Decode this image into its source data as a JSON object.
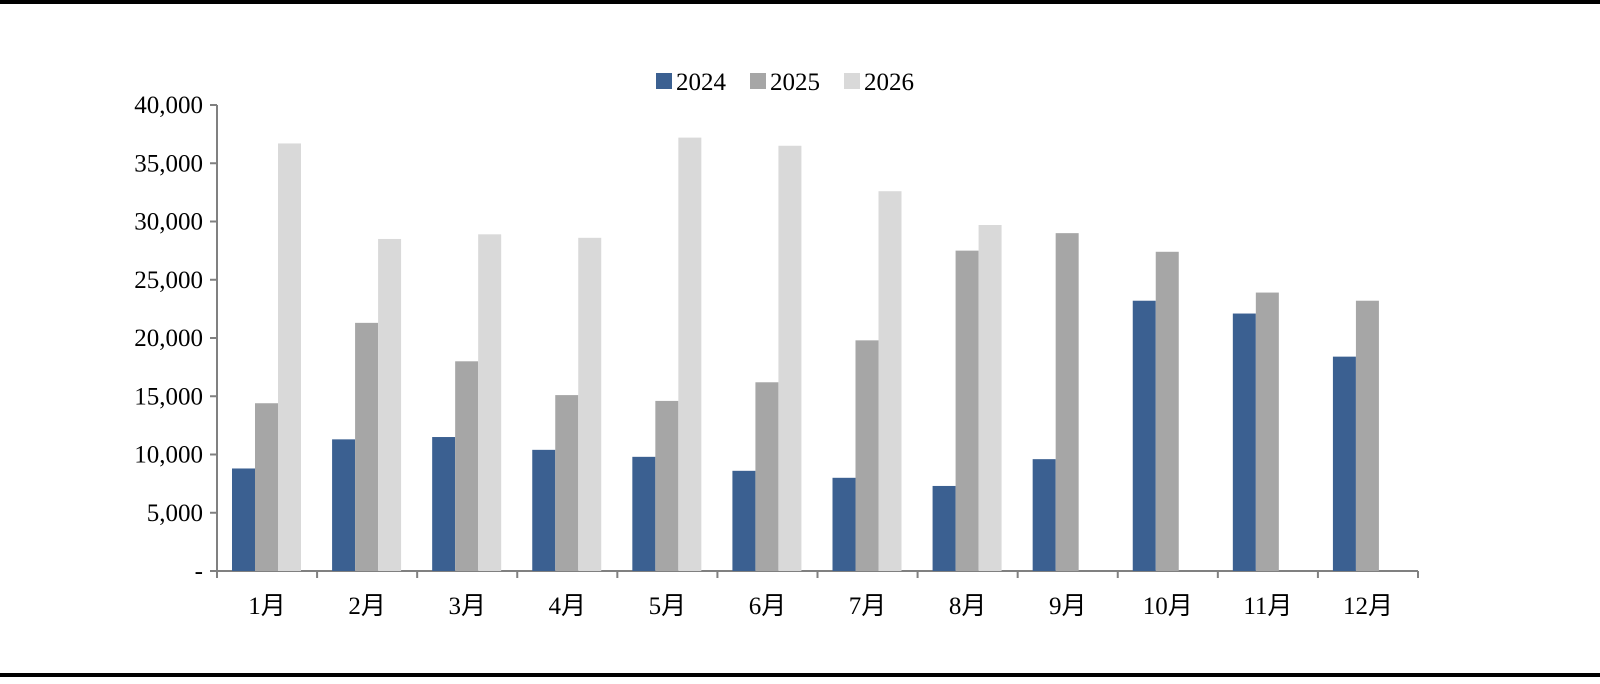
{
  "chart_data": {
    "type": "bar",
    "categories": [
      "1月",
      "2月",
      "3月",
      "4月",
      "5月",
      "6月",
      "7月",
      "8月",
      "9月",
      "10月",
      "11月",
      "12月"
    ],
    "series": [
      {
        "name": "2024",
        "color": "#3b6091",
        "values": [
          8800,
          11300,
          11500,
          10400,
          9800,
          8600,
          8000,
          7300,
          9600,
          23200,
          22100,
          18400
        ]
      },
      {
        "name": "2025",
        "color": "#a6a6a6",
        "values": [
          14400,
          21300,
          18000,
          15100,
          14600,
          16200,
          19800,
          27500,
          29000,
          27400,
          23900,
          23200
        ]
      },
      {
        "name": "2026",
        "color": "#d9d9d9",
        "values": [
          36700,
          28500,
          28900,
          28600,
          37200,
          36500,
          32600,
          29700,
          null,
          null,
          null,
          null
        ]
      }
    ],
    "yticks": [
      "-",
      "5,000",
      "10,000",
      "15,000",
      "20,000",
      "25,000",
      "30,000",
      "35,000",
      "40,000"
    ],
    "ylim": [
      0,
      40000
    ],
    "grid": false,
    "legend": "top-center"
  }
}
